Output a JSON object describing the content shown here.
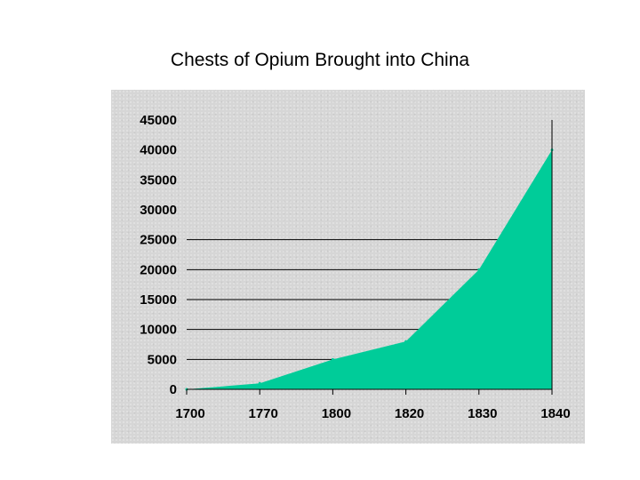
{
  "chart_data": {
    "type": "area",
    "title": "Chests of Opium Brought into China",
    "xlabel": "",
    "ylabel": "",
    "categories": [
      "1700",
      "1770",
      "1800",
      "1820",
      "1830",
      "1840"
    ],
    "values": [
      0,
      1000,
      5000,
      8000,
      20000,
      40000
    ],
    "ylim": [
      0,
      45000
    ],
    "yticks": [
      "45000",
      "40000",
      "35000",
      "30000",
      "25000",
      "20000",
      "15000",
      "10000",
      "5000",
      "0"
    ],
    "grid_lines_at": [
      5000,
      10000,
      15000,
      20000,
      25000
    ],
    "grid": true,
    "legend": "none",
    "fill_color": "#00cc99"
  }
}
